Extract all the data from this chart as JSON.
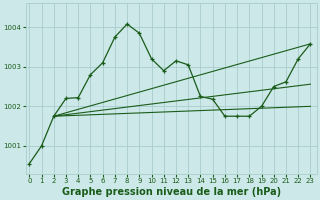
{
  "bg_color": "#cce8e8",
  "grid_color": "#aacccc",
  "line_color": "#1a5c1a",
  "xlabel": "Graphe pression niveau de la mer (hPa)",
  "xlabel_fontsize": 7,
  "xticks": [
    0,
    1,
    2,
    3,
    4,
    5,
    6,
    7,
    8,
    9,
    10,
    11,
    12,
    13,
    14,
    15,
    16,
    17,
    18,
    19,
    20,
    21,
    22,
    23
  ],
  "yticks": [
    1001,
    1002,
    1003,
    1004
  ],
  "ylim": [
    1000.3,
    1004.6
  ],
  "xlim": [
    -0.3,
    23.5
  ],
  "series1": [
    1000.55,
    1001.0,
    1001.75,
    1002.2,
    1002.22,
    1002.8,
    1003.1,
    1003.75,
    1004.08,
    1003.85,
    1003.2,
    1002.9,
    1003.15,
    1003.05,
    1002.25,
    1002.18,
    1001.75,
    1001.75,
    1001.75,
    1002.0,
    1002.5,
    1002.62,
    1003.2,
    1003.58
  ],
  "trend1_x": [
    2,
    23
  ],
  "trend1_y": [
    1001.75,
    1003.58
  ],
  "trend2_x": [
    2,
    23
  ],
  "trend2_y": [
    1001.75,
    1002.56
  ],
  "trend3_x": [
    2,
    23
  ],
  "trend3_y": [
    1001.75,
    1002.0
  ]
}
